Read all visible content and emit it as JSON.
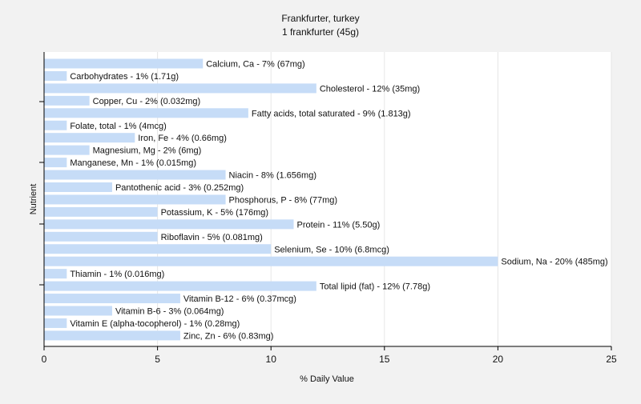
{
  "chart_data": {
    "type": "bar",
    "orientation": "horizontal",
    "title": "Frankfurter, turkey",
    "subtitle": "1 frankfurter (45g)",
    "xlabel": "% Daily Value",
    "ylabel": "Nutrient",
    "xlim": [
      0,
      25
    ],
    "xticks": [
      0,
      5,
      10,
      15,
      20,
      25
    ],
    "grid": true,
    "legend": "none",
    "bar_color": "#c6dcf7",
    "categories": [
      "Calcium, Ca",
      "Carbohydrates",
      "Cholesterol",
      "Copper, Cu",
      "Fatty acids, total saturated",
      "Folate, total",
      "Iron, Fe",
      "Magnesium, Mg",
      "Manganese, Mn",
      "Niacin",
      "Pantothenic acid",
      "Phosphorus, P",
      "Potassium, K",
      "Protein",
      "Riboflavin",
      "Selenium, Se",
      "Sodium, Na",
      "Thiamin",
      "Total lipid (fat)",
      "Vitamin B-12",
      "Vitamin B-6",
      "Vitamin E (alpha-tocopherol)",
      "Zinc, Zn"
    ],
    "values": [
      7,
      1,
      12,
      2,
      9,
      1,
      4,
      2,
      1,
      8,
      3,
      8,
      5,
      11,
      5,
      10,
      20,
      1,
      12,
      6,
      3,
      1,
      6
    ],
    "labels": [
      "Calcium, Ca - 7% (67mg)",
      "Carbohydrates - 1% (1.71g)",
      "Cholesterol - 12% (35mg)",
      "Copper, Cu - 2% (0.032mg)",
      "Fatty acids, total saturated - 9% (1.813g)",
      "Folate, total - 1% (4mcg)",
      "Iron, Fe - 4% (0.66mg)",
      "Magnesium, Mg - 2% (6mg)",
      "Manganese, Mn - 1% (0.015mg)",
      "Niacin - 8% (1.656mg)",
      "Pantothenic acid - 3% (0.252mg)",
      "Phosphorus, P - 8% (77mg)",
      "Potassium, K - 5% (176mg)",
      "Protein - 11% (5.50g)",
      "Riboflavin - 5% (0.081mg)",
      "Selenium, Se - 10% (6.8mcg)",
      "Sodium, Na - 20% (485mg)",
      "Thiamin - 1% (0.016mg)",
      "Total lipid (fat) - 12% (7.78g)",
      "Vitamin B-12 - 6% (0.37mcg)",
      "Vitamin B-6 - 3% (0.064mg)",
      "Vitamin E (alpha-tocopherol) - 1% (0.28mg)",
      "Zinc, Zn - 6% (0.83mg)"
    ]
  }
}
